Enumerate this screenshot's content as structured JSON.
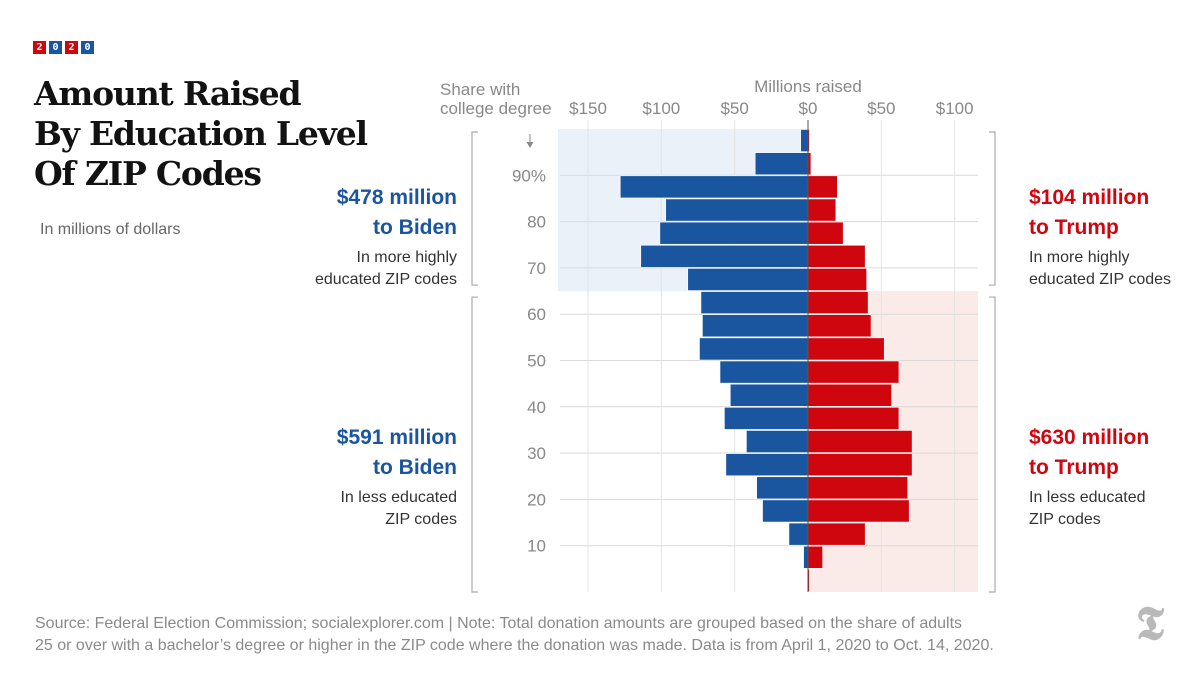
{
  "header": {
    "badge": [
      "2",
      "0",
      "2",
      "0"
    ],
    "badge_colors": [
      "#d0060f",
      "#1a56a0",
      "#d0060f",
      "#1a56a0"
    ],
    "title_lines": [
      "Amount Raised",
      "By Education Level",
      "Of ZIP Codes"
    ],
    "subtitle": "In millions of dollars"
  },
  "annotations": {
    "biden_high": {
      "amount": "$478 million",
      "to": "to Biden",
      "desc1": "In more highly",
      "desc2": "educated ZIP codes"
    },
    "trump_high": {
      "amount": "$104 million",
      "to": "to Trump",
      "desc1": "In more highly",
      "desc2": "educated ZIP codes"
    },
    "biden_low": {
      "amount": "$591 million",
      "to": "to Biden",
      "desc1": "In less educated",
      "desc2": "ZIP codes"
    },
    "trump_low": {
      "amount": "$630 million",
      "to": "to Trump",
      "desc1": "In less educated",
      "desc2": "ZIP codes"
    }
  },
  "source": {
    "line1": "Source: Federal Election Commission; socialexplorer.com | Note: Total donation amounts are grouped based on the share of adults",
    "line2": "25 or over with a bachelor’s degree or higher in the ZIP code where the donation was made. Data is from April 1, 2020 to Oct. 14, 2020."
  },
  "logo": "T",
  "chart_data": {
    "type": "bar",
    "orientation": "diverging-horizontal",
    "xlabel": "Millions raised",
    "ylabel": "Share with college degree",
    "x_ticks": [
      -150,
      -100,
      -50,
      0,
      50,
      100
    ],
    "x_tick_labels": [
      "$150",
      "$100",
      "$50",
      "$0",
      "$50",
      "$100"
    ],
    "xlim": [
      -160,
      120
    ],
    "y_ticks": [
      10,
      20,
      30,
      40,
      50,
      60,
      70,
      80,
      90
    ],
    "y_tick_labels": [
      "10",
      "20",
      "30",
      "40",
      "50",
      "60",
      "70",
      "80",
      "90%"
    ],
    "ylim": [
      0,
      100
    ],
    "bin_width": 5,
    "threshold": 65,
    "bins": [
      0,
      5,
      10,
      15,
      20,
      25,
      30,
      35,
      40,
      45,
      50,
      55,
      60,
      65,
      70,
      75,
      80,
      85,
      90,
      95
    ],
    "series": [
      {
        "name": "Biden",
        "color": "#1a56a0",
        "values": [
          0,
          3,
          13,
          31,
          35,
          56,
          42,
          57,
          53,
          60,
          74,
          72,
          73,
          82,
          114,
          101,
          97,
          128,
          36,
          5
        ]
      },
      {
        "name": "Trump",
        "color": "#d0060f",
        "values": [
          1,
          10,
          39,
          69,
          68,
          71,
          71,
          62,
          57,
          62,
          52,
          43,
          41,
          40,
          39,
          24,
          19,
          20,
          2,
          1
        ]
      }
    ],
    "shading": {
      "biden_region_color": "#eaf1f9",
      "trump_region_color": "#fbebe8"
    }
  }
}
